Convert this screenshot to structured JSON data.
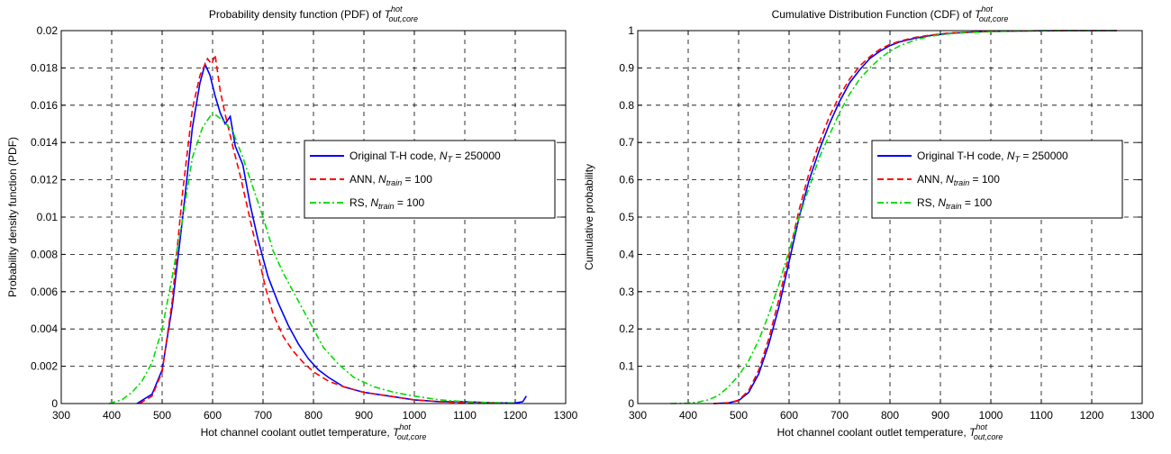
{
  "chart_data": [
    {
      "type": "line",
      "title": {
        "prefix": "Probability density function (PDF) of ",
        "var": "T",
        "sup": "hot",
        "sub": "out,core"
      },
      "xlabel": {
        "prefix": "Hot channel coolant outlet temperature, ",
        "var": "T",
        "sup": "hot",
        "sub": "out,core"
      },
      "ylabel": "Probability density function (PDF)",
      "xlim": [
        300,
        1300
      ],
      "ylim": [
        0,
        0.02
      ],
      "xticks": [
        "300",
        "400",
        "500",
        "600",
        "700",
        "800",
        "900",
        "1000",
        "1100",
        "1200",
        "1300"
      ],
      "yticks": [
        "0",
        "0.002",
        "0.004",
        "0.006",
        "0.008",
        "0.01",
        "0.012",
        "0.014",
        "0.016",
        "0.018",
        "0.02"
      ],
      "grid": true,
      "legend_position": "right",
      "series": [
        {
          "name": "Original T-H code",
          "name_rest": ", ",
          "nvar": "N",
          "nsub": "T",
          "nval": " = 250000",
          "color": "#0000ff",
          "dash": "solid",
          "x": [
            450,
            480,
            500,
            520,
            540,
            560,
            575,
            585,
            595,
            605,
            615,
            625,
            635,
            645,
            660,
            675,
            690,
            710,
            730,
            750,
            770,
            790,
            810,
            830,
            860,
            900,
            950,
            1000,
            1050,
            1100,
            1150,
            1200,
            1215,
            1222
          ],
          "y": [
            0.0,
            0.0005,
            0.0018,
            0.0052,
            0.0098,
            0.0148,
            0.0172,
            0.0182,
            0.0176,
            0.0165,
            0.0156,
            0.015,
            0.0154,
            0.0138,
            0.0128,
            0.0106,
            0.0088,
            0.0068,
            0.0054,
            0.0042,
            0.0032,
            0.0024,
            0.0018,
            0.0014,
            0.0009,
            0.0006,
            0.0004,
            0.0002,
            0.0001,
            0.0001,
            5e-05,
            3e-05,
            0.0001,
            0.0004
          ]
        },
        {
          "name": "ANN",
          "name_rest": ", ",
          "nvar": "N",
          "nsub": "train",
          "nval": " = 100",
          "color": "#ff0000",
          "dash": "7,4",
          "x": [
            455,
            480,
            500,
            520,
            540,
            560,
            575,
            590,
            598,
            605,
            615,
            625,
            640,
            655,
            670,
            690,
            705,
            720,
            740,
            760,
            780,
            800,
            830,
            860,
            900,
            950,
            1000,
            1050,
            1100,
            1150,
            1200
          ],
          "y": [
            0.0,
            0.0004,
            0.0017,
            0.0055,
            0.0112,
            0.0158,
            0.0176,
            0.0185,
            0.0182,
            0.0187,
            0.0168,
            0.0155,
            0.0138,
            0.0122,
            0.0104,
            0.008,
            0.0062,
            0.0048,
            0.0036,
            0.0028,
            0.0022,
            0.0017,
            0.0012,
            0.0009,
            0.0006,
            0.0004,
            0.0002,
            0.0001,
            5e-05,
            3e-05,
            1e-05
          ]
        },
        {
          "name": "RS",
          "name_rest": ", ",
          "nvar": "N",
          "nsub": "train",
          "nval": " = 100",
          "color": "#00dd00",
          "dash": "7,3,2,3",
          "x": [
            395,
            420,
            440,
            460,
            480,
            500,
            520,
            540,
            560,
            580,
            600,
            620,
            640,
            660,
            680,
            700,
            720,
            740,
            760,
            780,
            800,
            820,
            850,
            880,
            920,
            960,
            1000,
            1050,
            1100,
            1150,
            1200
          ],
          "y": [
            0.0,
            0.0002,
            0.0006,
            0.0012,
            0.0022,
            0.004,
            0.0068,
            0.0098,
            0.0132,
            0.0148,
            0.0156,
            0.0152,
            0.0146,
            0.0132,
            0.0116,
            0.01,
            0.0082,
            0.007,
            0.006,
            0.005,
            0.004,
            0.003,
            0.0021,
            0.0014,
            0.0009,
            0.0006,
            0.0004,
            0.0002,
            0.0001,
            5e-05,
            2e-05
          ]
        }
      ]
    },
    {
      "type": "line",
      "title": {
        "prefix": "Cumulative Distribution Function (CDF) of ",
        "var": "T",
        "sup": "hot",
        "sub": "out,core"
      },
      "xlabel": {
        "prefix": "Hot channel coolant outlet temperature, ",
        "var": "T",
        "sup": "hot",
        "sub": "out,core"
      },
      "ylabel": "Cumulative probability",
      "xlim": [
        300,
        1300
      ],
      "ylim": [
        0,
        1
      ],
      "xticks": [
        "300",
        "400",
        "500",
        "600",
        "700",
        "800",
        "900",
        "1000",
        "1100",
        "1200",
        "1300"
      ],
      "yticks": [
        "0",
        "0.1",
        "0.2",
        "0.3",
        "0.4",
        "0.5",
        "0.6",
        "0.7",
        "0.8",
        "0.9",
        "1"
      ],
      "grid": true,
      "legend_position": "right",
      "series": [
        {
          "name": "Original T-H code",
          "name_rest": ", ",
          "nvar": "N",
          "nsub": "T",
          "nval": " = 250000",
          "color": "#0000ff",
          "dash": "solid",
          "x": [
            450,
            480,
            500,
            520,
            540,
            560,
            580,
            600,
            620,
            640,
            660,
            680,
            700,
            720,
            740,
            760,
            780,
            800,
            820,
            850,
            880,
            920,
            960,
            1000,
            1050,
            1100,
            1150,
            1200,
            1250
          ],
          "y": [
            0.0,
            0.002,
            0.008,
            0.03,
            0.08,
            0.16,
            0.26,
            0.38,
            0.5,
            0.6,
            0.68,
            0.75,
            0.81,
            0.86,
            0.895,
            0.925,
            0.945,
            0.96,
            0.97,
            0.98,
            0.987,
            0.993,
            0.996,
            0.998,
            0.999,
            0.9995,
            1.0,
            1.0,
            1.0
          ]
        },
        {
          "name": "ANN",
          "name_rest": ", ",
          "nvar": "N",
          "nsub": "train",
          "nval": " = 100",
          "color": "#ff0000",
          "dash": "7,4",
          "x": [
            450,
            480,
            500,
            520,
            540,
            560,
            580,
            600,
            620,
            640,
            660,
            680,
            700,
            720,
            740,
            760,
            780,
            800,
            820,
            850,
            880,
            920,
            960,
            1000,
            1050,
            1100,
            1150,
            1200,
            1250
          ],
          "y": [
            0.0,
            0.002,
            0.009,
            0.035,
            0.09,
            0.175,
            0.28,
            0.4,
            0.52,
            0.62,
            0.7,
            0.77,
            0.825,
            0.87,
            0.905,
            0.93,
            0.95,
            0.963,
            0.972,
            0.982,
            0.988,
            0.994,
            0.996,
            0.998,
            0.999,
            0.9995,
            1.0,
            1.0,
            1.0
          ]
        },
        {
          "name": "RS",
          "name_rest": ", ",
          "nvar": "N",
          "nsub": "train",
          "nval": " = 100",
          "color": "#00dd00",
          "dash": "7,3,2,3",
          "x": [
            365,
            400,
            420,
            440,
            460,
            480,
            500,
            520,
            540,
            560,
            580,
            600,
            620,
            640,
            660,
            680,
            700,
            720,
            740,
            760,
            780,
            800,
            820,
            850,
            880,
            920,
            960,
            1000,
            1050,
            1100,
            1150,
            1200,
            1250
          ],
          "y": [
            0.0,
            0.001,
            0.004,
            0.01,
            0.022,
            0.045,
            0.075,
            0.115,
            0.17,
            0.24,
            0.32,
            0.41,
            0.5,
            0.58,
            0.66,
            0.72,
            0.78,
            0.83,
            0.87,
            0.9,
            0.925,
            0.945,
            0.96,
            0.975,
            0.985,
            0.992,
            0.995,
            0.997,
            0.999,
            0.9995,
            1.0,
            1.0,
            1.0
          ]
        }
      ]
    }
  ]
}
